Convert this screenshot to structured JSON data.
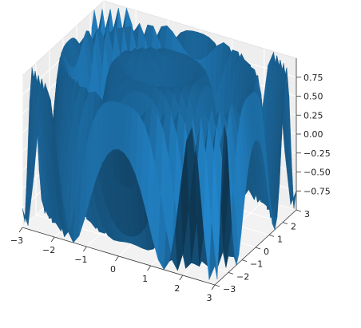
{
  "chart_data": {
    "type": "surface",
    "title": "",
    "xlabel": "",
    "ylabel": "",
    "zlabel": "",
    "function": "sin(x^2 + y^2)",
    "x_range": [
      -3,
      3
    ],
    "y_range": [
      -3,
      3
    ],
    "z_range": [
      -1,
      1
    ],
    "x_ticks": [
      "−3",
      "−2",
      "−1",
      "0",
      "1",
      "2",
      "3"
    ],
    "y_ticks": [
      "−3",
      "−2",
      "−1",
      "0",
      "1",
      "2",
      "3"
    ],
    "z_ticks": [
      "0.75",
      "0.50",
      "0.25",
      "0.00",
      "−0.25",
      "−0.50",
      "−0.75"
    ],
    "z_tick_values": [
      0.75,
      0.5,
      0.25,
      0,
      -0.25,
      -0.5,
      -0.75
    ],
    "grid": true,
    "colors": {
      "surface": "#1f77b4",
      "pane": "#f2f2f2",
      "grid": "#ffffff"
    }
  }
}
